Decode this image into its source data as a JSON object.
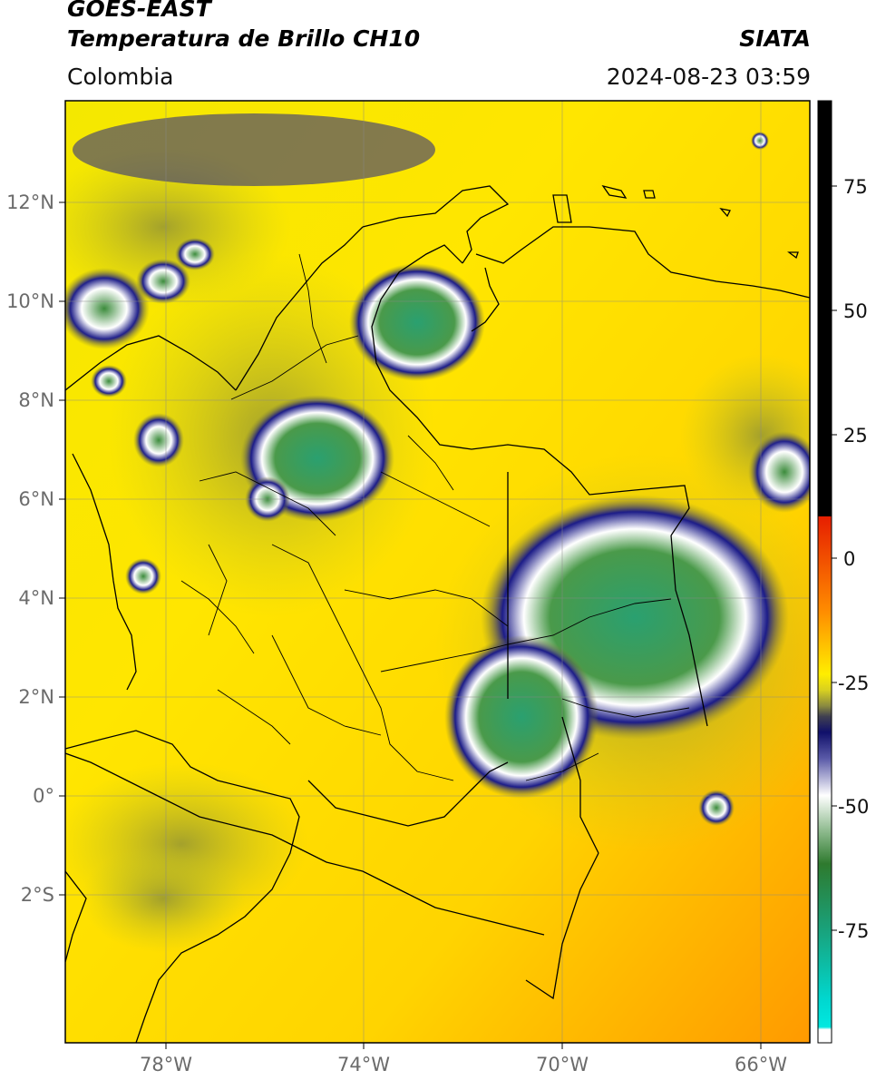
{
  "header": {
    "title_line1": "GOES-EAST",
    "title_line2": "Temperatura de Brillo CH10",
    "brand": "SIATA",
    "region": "Colombia",
    "datetime": "2024-08-23 03:59"
  },
  "map": {
    "lat_ticks": [
      "12°N",
      "10°N",
      "8°N",
      "6°N",
      "4°N",
      "2°N",
      "0°",
      "2°S"
    ],
    "lon_ticks": [
      "78°W",
      "74°W",
      "70°W",
      "66°W"
    ],
    "background_color": "#ffe000",
    "cloud_colors": [
      "#1a1a7a",
      "#ffffff",
      "#3a8a3a",
      "#2aa87a"
    ]
  },
  "colorbar": {
    "ticks": [
      "75",
      "50",
      "25",
      "0",
      "-25",
      "-50",
      "-75"
    ]
  }
}
